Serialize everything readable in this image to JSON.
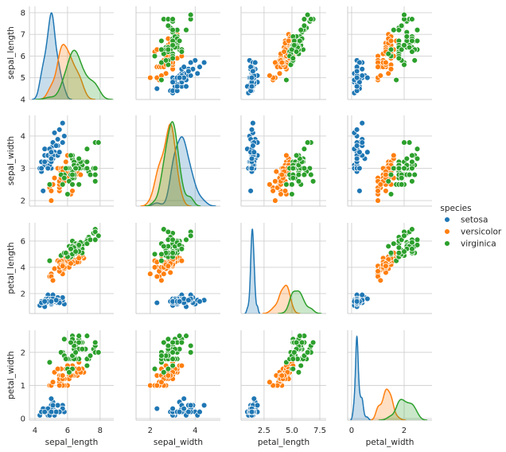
{
  "chart_data": {
    "type": "pairplot",
    "variables": [
      "sepal_length",
      "sepal_width",
      "petal_length",
      "petal_width"
    ],
    "axis_ranges_x": {
      "sepal_length": [
        3.66,
        8.84
      ],
      "sepal_width": [
        1.37,
        5.12
      ],
      "petal_length": [
        0.44,
        8.07
      ],
      "petal_width": [
        -0.15,
        3.06
      ]
    },
    "axis_ranges_y": {
      "sepal_length": [
        4.0,
        8.29
      ],
      "sepal_width": [
        1.83,
        4.64
      ],
      "petal_length": [
        0.48,
        7.39
      ],
      "petal_width": [
        -0.05,
        2.67
      ]
    },
    "x_ticks": {
      "sepal_length": [
        "4",
        "6",
        "8"
      ],
      "sepal_width": [
        "2",
        "4"
      ],
      "petal_length": [
        "2.5",
        "5.0",
        "7.5"
      ],
      "petal_width": [
        "0",
        "2"
      ]
    },
    "y_ticks": {
      "sepal_length": [
        "4",
        "5",
        "6",
        "7",
        "8"
      ],
      "sepal_width": [
        "2",
        "3",
        "4"
      ],
      "petal_length": [
        "2",
        "4",
        "6"
      ],
      "petal_width": [
        "0",
        "1",
        "2"
      ]
    },
    "diagonal": "kde",
    "off_diagonal": "scatter",
    "grid": true,
    "legend": {
      "title": "species",
      "placement": "right"
    },
    "series": [
      {
        "name": "setosa",
        "color": "#1f77b4",
        "rows": [
          [
            5.1,
            3.5,
            1.4,
            0.2
          ],
          [
            4.9,
            3.0,
            1.4,
            0.2
          ],
          [
            4.7,
            3.2,
            1.3,
            0.2
          ],
          [
            4.6,
            3.1,
            1.5,
            0.2
          ],
          [
            5.0,
            3.6,
            1.4,
            0.2
          ],
          [
            5.4,
            3.9,
            1.7,
            0.4
          ],
          [
            4.6,
            3.4,
            1.4,
            0.3
          ],
          [
            5.0,
            3.4,
            1.5,
            0.2
          ],
          [
            4.4,
            2.9,
            1.4,
            0.2
          ],
          [
            4.9,
            3.1,
            1.5,
            0.1
          ],
          [
            5.4,
            3.7,
            1.5,
            0.2
          ],
          [
            4.8,
            3.4,
            1.6,
            0.2
          ],
          [
            4.8,
            3.0,
            1.4,
            0.1
          ],
          [
            4.3,
            3.0,
            1.1,
            0.1
          ],
          [
            5.8,
            4.0,
            1.2,
            0.2
          ],
          [
            5.7,
            4.4,
            1.5,
            0.4
          ],
          [
            5.4,
            3.9,
            1.3,
            0.4
          ],
          [
            5.1,
            3.5,
            1.4,
            0.3
          ],
          [
            5.7,
            3.8,
            1.7,
            0.3
          ],
          [
            5.1,
            3.8,
            1.5,
            0.3
          ],
          [
            5.4,
            3.4,
            1.7,
            0.2
          ],
          [
            5.1,
            3.7,
            1.5,
            0.4
          ],
          [
            4.6,
            3.6,
            1.0,
            0.2
          ],
          [
            5.1,
            3.3,
            1.7,
            0.5
          ],
          [
            4.8,
            3.4,
            1.9,
            0.2
          ],
          [
            5.0,
            3.0,
            1.6,
            0.2
          ],
          [
            5.0,
            3.4,
            1.6,
            0.4
          ],
          [
            5.2,
            3.5,
            1.5,
            0.2
          ],
          [
            5.2,
            3.4,
            1.4,
            0.2
          ],
          [
            4.7,
            3.2,
            1.6,
            0.2
          ],
          [
            4.8,
            3.1,
            1.6,
            0.2
          ],
          [
            5.4,
            3.4,
            1.5,
            0.4
          ],
          [
            5.2,
            4.1,
            1.5,
            0.1
          ],
          [
            5.5,
            4.2,
            1.4,
            0.2
          ],
          [
            4.9,
            3.1,
            1.5,
            0.2
          ],
          [
            5.0,
            3.2,
            1.2,
            0.2
          ],
          [
            5.5,
            3.5,
            1.3,
            0.2
          ],
          [
            4.9,
            3.6,
            1.4,
            0.1
          ],
          [
            4.4,
            3.0,
            1.3,
            0.2
          ],
          [
            5.1,
            3.4,
            1.5,
            0.2
          ],
          [
            5.0,
            3.5,
            1.3,
            0.3
          ],
          [
            4.5,
            2.3,
            1.3,
            0.3
          ],
          [
            4.4,
            3.2,
            1.3,
            0.2
          ],
          [
            5.0,
            3.5,
            1.6,
            0.6
          ],
          [
            5.1,
            3.8,
            1.9,
            0.4
          ],
          [
            4.8,
            3.0,
            1.4,
            0.3
          ],
          [
            5.1,
            3.8,
            1.6,
            0.2
          ],
          [
            4.6,
            3.2,
            1.4,
            0.2
          ],
          [
            5.3,
            3.7,
            1.5,
            0.2
          ],
          [
            5.0,
            3.3,
            1.4,
            0.2
          ]
        ]
      },
      {
        "name": "versicolor",
        "color": "#ff7f0e",
        "rows": [
          [
            7.0,
            3.2,
            4.7,
            1.4
          ],
          [
            6.4,
            3.2,
            4.5,
            1.5
          ],
          [
            6.9,
            3.1,
            4.9,
            1.5
          ],
          [
            5.5,
            2.3,
            4.0,
            1.3
          ],
          [
            6.5,
            2.8,
            4.6,
            1.5
          ],
          [
            5.7,
            2.8,
            4.5,
            1.3
          ],
          [
            6.3,
            3.3,
            4.7,
            1.6
          ],
          [
            4.9,
            2.4,
            3.3,
            1.0
          ],
          [
            6.6,
            2.9,
            4.6,
            1.3
          ],
          [
            5.2,
            2.7,
            3.9,
            1.4
          ],
          [
            5.0,
            2.0,
            3.5,
            1.0
          ],
          [
            5.9,
            3.0,
            4.2,
            1.5
          ],
          [
            6.0,
            2.2,
            4.0,
            1.0
          ],
          [
            6.1,
            2.9,
            4.7,
            1.4
          ],
          [
            5.6,
            2.9,
            3.6,
            1.3
          ],
          [
            6.7,
            3.1,
            4.4,
            1.4
          ],
          [
            5.6,
            3.0,
            4.5,
            1.5
          ],
          [
            5.8,
            2.7,
            4.1,
            1.0
          ],
          [
            6.2,
            2.2,
            4.5,
            1.5
          ],
          [
            5.6,
            2.5,
            3.9,
            1.1
          ],
          [
            5.9,
            3.2,
            4.8,
            1.8
          ],
          [
            6.1,
            2.8,
            4.0,
            1.3
          ],
          [
            6.3,
            2.5,
            4.9,
            1.5
          ],
          [
            6.1,
            2.8,
            4.7,
            1.2
          ],
          [
            6.4,
            2.9,
            4.3,
            1.3
          ],
          [
            6.6,
            3.0,
            4.4,
            1.4
          ],
          [
            6.8,
            2.8,
            4.8,
            1.4
          ],
          [
            6.7,
            3.0,
            5.0,
            1.7
          ],
          [
            6.0,
            2.9,
            4.5,
            1.5
          ],
          [
            5.7,
            2.6,
            3.5,
            1.0
          ],
          [
            5.5,
            2.4,
            3.8,
            1.1
          ],
          [
            5.5,
            2.4,
            3.7,
            1.0
          ],
          [
            5.8,
            2.7,
            3.9,
            1.2
          ],
          [
            6.0,
            2.7,
            5.1,
            1.6
          ],
          [
            5.4,
            3.0,
            4.5,
            1.5
          ],
          [
            6.0,
            3.4,
            4.5,
            1.6
          ],
          [
            6.7,
            3.1,
            4.7,
            1.5
          ],
          [
            6.3,
            2.3,
            4.4,
            1.3
          ],
          [
            5.6,
            3.0,
            4.1,
            1.3
          ],
          [
            5.5,
            2.5,
            4.0,
            1.3
          ],
          [
            5.5,
            2.6,
            4.4,
            1.2
          ],
          [
            6.1,
            3.0,
            4.6,
            1.4
          ],
          [
            5.8,
            2.6,
            4.0,
            1.2
          ],
          [
            5.0,
            2.3,
            3.3,
            1.0
          ],
          [
            5.6,
            2.7,
            4.2,
            1.3
          ],
          [
            5.7,
            3.0,
            4.2,
            1.2
          ],
          [
            5.7,
            2.9,
            4.2,
            1.3
          ],
          [
            6.2,
            2.9,
            4.3,
            1.3
          ],
          [
            5.1,
            2.5,
            3.0,
            1.1
          ],
          [
            5.7,
            2.8,
            4.1,
            1.3
          ]
        ]
      },
      {
        "name": "virginica",
        "color": "#2ca02c",
        "rows": [
          [
            6.3,
            3.3,
            6.0,
            2.5
          ],
          [
            5.8,
            2.7,
            5.1,
            1.9
          ],
          [
            7.1,
            3.0,
            5.9,
            2.1
          ],
          [
            6.3,
            2.9,
            5.6,
            1.8
          ],
          [
            6.5,
            3.0,
            5.8,
            2.2
          ],
          [
            7.6,
            3.0,
            6.6,
            2.1
          ],
          [
            4.9,
            2.5,
            4.5,
            1.7
          ],
          [
            7.3,
            2.9,
            6.3,
            1.8
          ],
          [
            6.7,
            2.5,
            5.8,
            1.8
          ],
          [
            7.2,
            3.6,
            6.1,
            2.5
          ],
          [
            6.5,
            3.2,
            5.1,
            2.0
          ],
          [
            6.4,
            2.7,
            5.3,
            1.9
          ],
          [
            6.8,
            3.0,
            5.5,
            2.1
          ],
          [
            5.7,
            2.5,
            5.0,
            2.0
          ],
          [
            5.8,
            2.8,
            5.1,
            2.4
          ],
          [
            6.4,
            3.2,
            5.3,
            2.3
          ],
          [
            6.5,
            3.0,
            5.5,
            1.8
          ],
          [
            7.7,
            3.8,
            6.7,
            2.2
          ],
          [
            7.7,
            2.6,
            6.9,
            2.3
          ],
          [
            6.0,
            2.2,
            5.0,
            1.5
          ],
          [
            6.9,
            3.2,
            5.7,
            2.3
          ],
          [
            5.6,
            2.8,
            4.9,
            2.0
          ],
          [
            7.7,
            2.8,
            6.7,
            2.0
          ],
          [
            6.3,
            2.7,
            4.9,
            1.8
          ],
          [
            6.7,
            3.3,
            5.7,
            2.1
          ],
          [
            7.2,
            3.2,
            6.0,
            1.8
          ],
          [
            6.2,
            2.8,
            4.8,
            1.8
          ],
          [
            6.1,
            3.0,
            4.9,
            1.8
          ],
          [
            6.4,
            2.8,
            5.6,
            2.1
          ],
          [
            7.2,
            3.0,
            5.8,
            1.6
          ],
          [
            7.4,
            2.8,
            6.1,
            1.9
          ],
          [
            7.9,
            3.8,
            6.4,
            2.0
          ],
          [
            6.4,
            2.8,
            5.6,
            2.2
          ],
          [
            6.3,
            2.8,
            5.1,
            1.5
          ],
          [
            6.1,
            2.6,
            5.6,
            1.4
          ],
          [
            7.7,
            3.0,
            6.1,
            2.3
          ],
          [
            6.3,
            3.4,
            5.6,
            2.4
          ],
          [
            6.4,
            3.1,
            5.5,
            1.8
          ],
          [
            6.0,
            3.0,
            4.8,
            1.8
          ],
          [
            6.9,
            3.1,
            5.4,
            2.1
          ],
          [
            6.7,
            3.1,
            5.6,
            2.4
          ],
          [
            6.9,
            3.1,
            5.1,
            2.3
          ],
          [
            5.8,
            2.7,
            5.1,
            1.9
          ],
          [
            6.8,
            3.2,
            5.9,
            2.3
          ],
          [
            6.7,
            3.3,
            5.7,
            2.5
          ],
          [
            6.7,
            3.0,
            5.2,
            2.3
          ],
          [
            6.3,
            2.5,
            5.0,
            1.9
          ],
          [
            6.5,
            3.0,
            5.2,
            2.0
          ],
          [
            6.2,
            3.4,
            5.4,
            2.3
          ],
          [
            5.9,
            3.0,
            5.1,
            1.8
          ]
        ]
      }
    ]
  }
}
